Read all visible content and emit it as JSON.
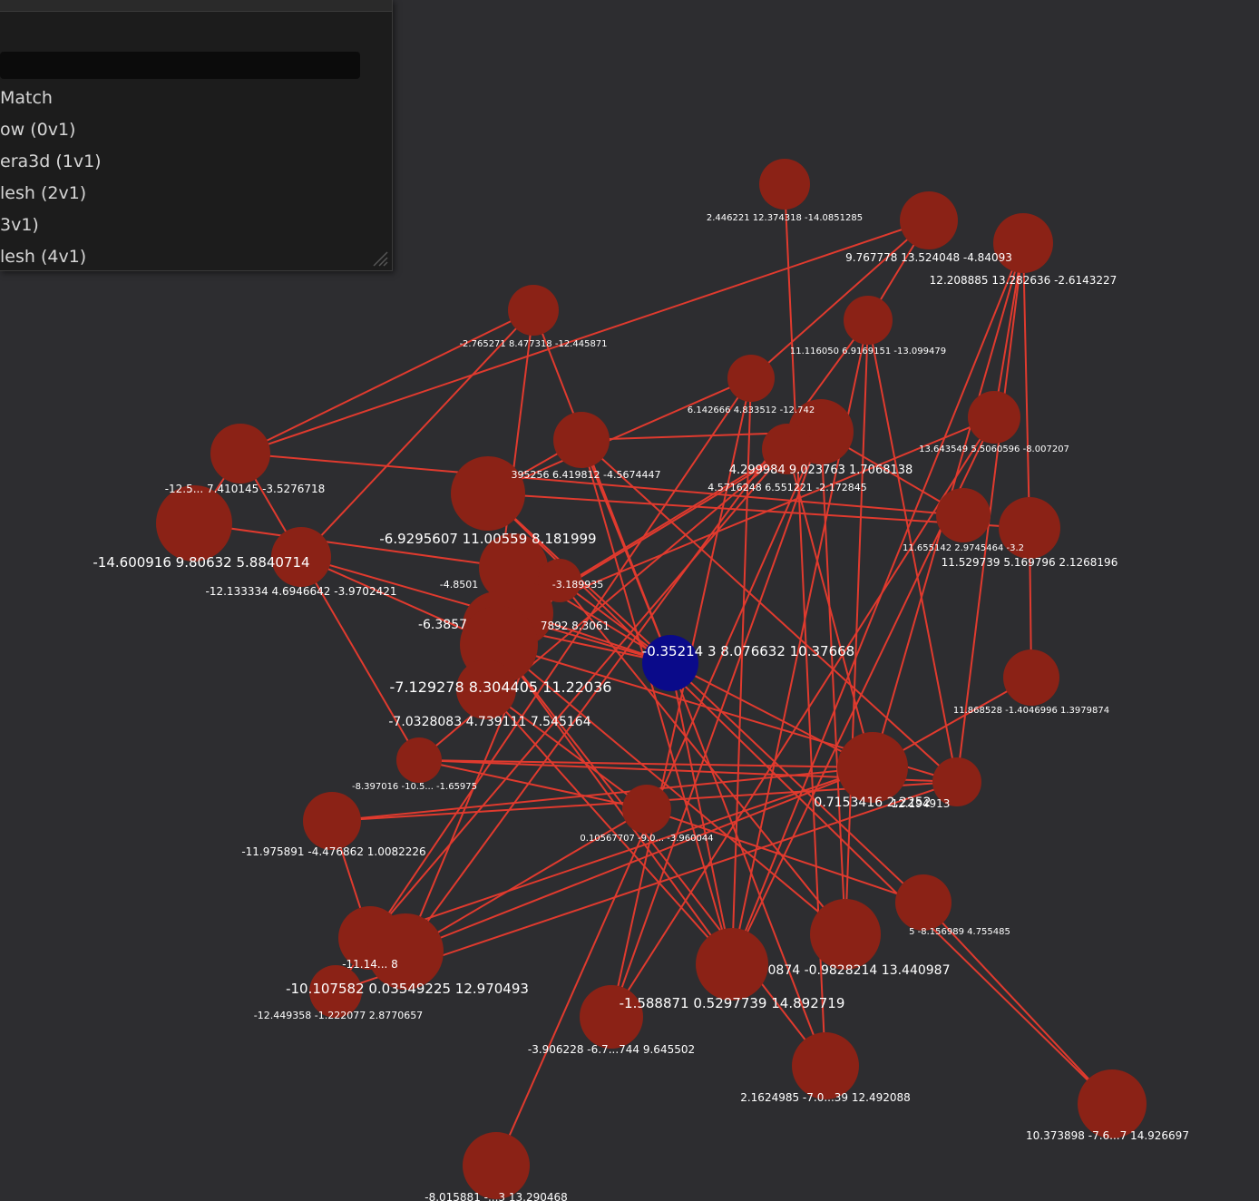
{
  "panel": {
    "search_value": "",
    "items": [
      "Match",
      "ow (0v1)",
      "era3d (1v1)",
      "lesh (2v1)",
      "3v1)",
      "lesh (4v1)"
    ]
  },
  "colors": {
    "background": "#2d2d30",
    "node": "#8b2216",
    "selected_node": "#0a0a8a",
    "edge": "#e03a2e",
    "panel": "#1c1c1c"
  },
  "nodes": [
    {
      "label": "2.446221 12.374318 -14.0851285"
    },
    {
      "label": "9.767778 13.524048 -4.84093"
    },
    {
      "label": "12.208885 13.282636 -2.6143227"
    },
    {
      "label": "-2.765271 8.477318 -12.445871"
    },
    {
      "label": "11.116050 6.9169151 -13.099479"
    },
    {
      "label": "6.142666 4.833512 -12.742"
    },
    {
      "label": "13.643549 5.5060596 -8.007207"
    },
    {
      "label": "-12.5... 7.410145 -3.5276718"
    },
    {
      "label": "-6.9295607 11.00559 8.181999"
    },
    {
      "label": "395256 6.419812 -4.5674447"
    },
    {
      "label": "4.299984 9.023763 1.7068138"
    },
    {
      "label": "4.5716248 6.551221 -2.172845"
    },
    {
      "label": "-14.600916 9.80632 5.8840714"
    },
    {
      "label": "-12.133334 4.6946642 -3.9702421"
    },
    {
      "label": "11.655142 2.9745464 -3.2"
    },
    {
      "label": "11.529739 5.169796 2.1268196"
    },
    {
      "label": "-4.8501"
    },
    {
      "label": "-3.189935"
    },
    {
      "label": "-6.3857"
    },
    {
      "label": "7892 8.3061"
    },
    {
      "label": "-0.35214 3 8.076632 10.37668"
    },
    {
      "label": "-7.129278 8.304405 11.22036"
    },
    {
      "label": "-7.0328083 4.739111 7.545164"
    },
    {
      "label": "11.868528 -1.4046996 1.3979874"
    },
    {
      "label": "-8.397016 -10.5... -1.65975"
    },
    {
      "label": "0.7153416 2.2252"
    },
    {
      "label": "12.194913"
    },
    {
      "label": "0.10567707 -9.0... -3.960044"
    },
    {
      "label": "-11.975891 -4.476862 1.0082226"
    },
    {
      "label": "5 -8.156989 4.755485"
    },
    {
      "label": "0874 -0.9828214 13.440987"
    },
    {
      "label": "-11.14... 8"
    },
    {
      "label": "-10.107582 0.03549225 12.970493"
    },
    {
      "label": "-12.449358 -1.222077 2.8770657"
    },
    {
      "label": "-1.588871 0.5297739 14.892719"
    },
    {
      "label": "-3.906228 -6.7...744 9.645502"
    },
    {
      "label": "2.1624985 -7.0...39 12.492088"
    },
    {
      "label": "10.373898 -7.6...7 14.926697"
    },
    {
      "label": "-8.015881 -...3 13.290468"
    }
  ]
}
